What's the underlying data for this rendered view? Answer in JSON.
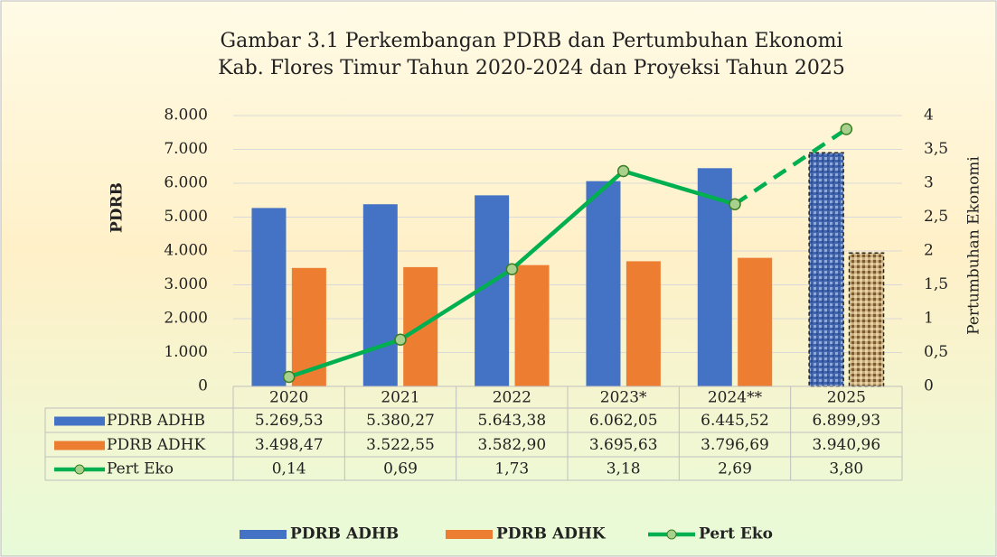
{
  "chart_data": {
    "type": "bar",
    "title": [
      "Gambar 3.1 Perkembangan PDRB dan Pertumbuhan Ekonomi",
      "Kab. Flores Timur Tahun 2020-2024 dan Proyeksi Tahun 2025"
    ],
    "y_label": "PDRB",
    "y2_label": "Pertumbuhan Ekonomi",
    "categories": [
      "2020",
      "2021",
      "2022",
      "2023*",
      "2024**",
      "2025"
    ],
    "series": [
      {
        "name": "PDRB ADHB",
        "type": "bar",
        "color": "#4472c4",
        "values": [
          5269.53,
          5380.27,
          5643.38,
          6062.05,
          6445.52,
          6899.93
        ],
        "value_labels": [
          "5.269,53",
          "5.380,27",
          "5.643,38",
          "6.062,05",
          "6.445,52",
          "6.899,93"
        ]
      },
      {
        "name": "PDRB ADHK",
        "type": "bar",
        "color": "#ed7d31",
        "values": [
          3498.47,
          3522.55,
          3582.9,
          3695.63,
          3796.69,
          3940.96
        ],
        "value_labels": [
          "3.498,47",
          "3.522,55",
          "3.582,90",
          "3.695,63",
          "3.796,69",
          "3.940,96"
        ]
      },
      {
        "name": "Pert Eko",
        "type": "line",
        "axis": "y2",
        "color": "#00b050",
        "values": [
          0.14,
          0.69,
          1.73,
          3.18,
          2.69,
          3.8
        ],
        "value_labels": [
          "0,14",
          "0,69",
          "1,73",
          "3,18",
          "2,69",
          "3,80"
        ]
      }
    ],
    "ylim": [
      0,
      8000
    ],
    "yticks": [
      0,
      {
        "value": 1000,
        "label": "1.000"
      },
      {
        "value": 2000,
        "label": "2.000"
      },
      {
        "value": 3000,
        "label": "3.000"
      },
      {
        "value": 4000,
        "label": "4.000"
      },
      {
        "value": 5000,
        "label": "5.000"
      },
      {
        "value": 6000,
        "label": "6.000"
      },
      {
        "value": 7000,
        "label": "7.000"
      },
      {
        "value": 8000,
        "label": "8.000"
      }
    ],
    "y2lim": [
      0,
      4
    ],
    "y2ticks": [
      0,
      {
        "value": 0.5,
        "label": "0,5"
      },
      1,
      {
        "value": 1.5,
        "label": "1,5"
      },
      2,
      {
        "value": 2.5,
        "label": "2,5"
      },
      3,
      {
        "value": 3.5,
        "label": "3,5"
      },
      4
    ],
    "grid": true,
    "legend": "bottom"
  }
}
